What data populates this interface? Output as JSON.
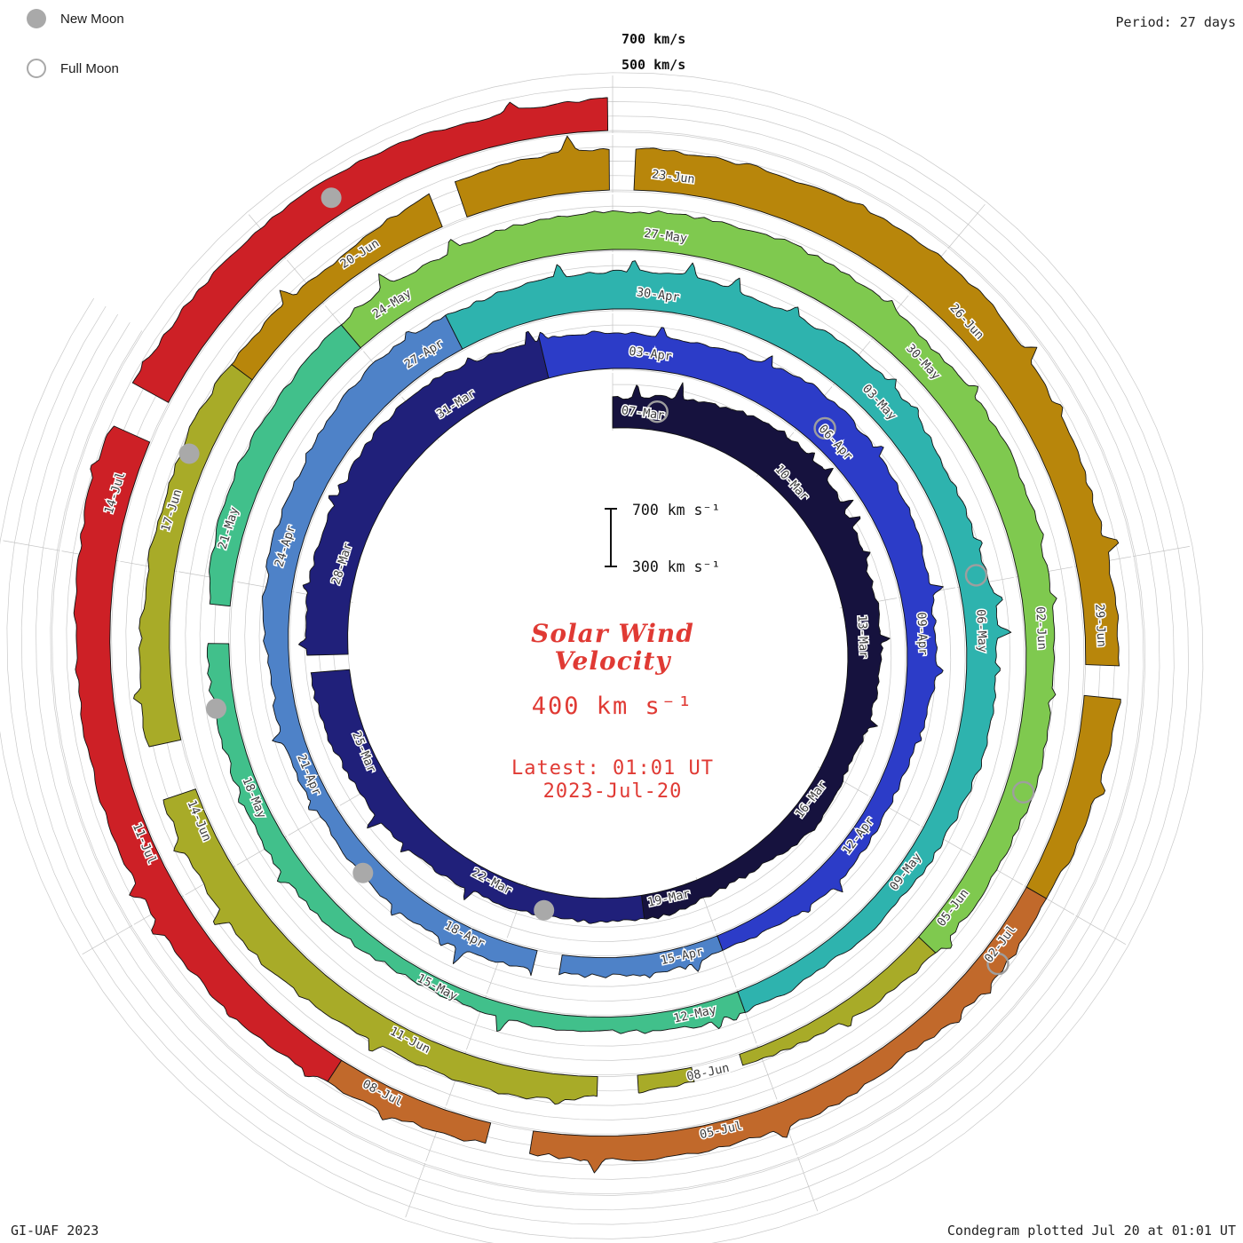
{
  "window": {
    "background": "#ffffff"
  },
  "legend": {
    "items": [
      {
        "label": "New Moon",
        "marker": "filled-circle"
      },
      {
        "label": "Full Moon",
        "marker": "open-circle"
      }
    ]
  },
  "corner_text": {
    "period": "Period: 27 days",
    "credit": "GI-UAF 2023",
    "plotted": "Condegram plotted Jul 20 at 01:01 UT"
  },
  "outer_scale_labels": {
    "l700": "700 km/s",
    "l500": "500 km/s"
  },
  "scale_bar": {
    "top": "700 km s⁻¹",
    "bottom": "300 km s⁻¹"
  },
  "center_text": {
    "title_line1": "Solar Wind",
    "title_line2": "Velocity",
    "baseline": "400 km s⁻¹",
    "latest_line1": "Latest: 01:01 UT",
    "latest_line2": "2023-Jul-20",
    "accent_color": "#e03a34"
  },
  "chart_data": {
    "type": "area",
    "variant": "spiral-condegram",
    "title": "Solar Wind Velocity",
    "units": "km/s",
    "baseline_kms": 400,
    "period_days": 27,
    "start_date": "2023-03-07",
    "latest": "2023-Jul-20 01:01 UT",
    "velocity_scale": {
      "min": 300,
      "max": 700
    },
    "grid_levels": [
      300,
      400,
      500,
      600,
      700
    ],
    "label_step_days": 3,
    "date_labels": [
      "07-Mar",
      "10-Mar",
      "13-Mar",
      "16-Mar",
      "19-Mar",
      "22-Mar",
      "25-Mar",
      "28-Mar",
      "31-Mar",
      "03-Apr",
      "06-Apr",
      "09-Apr",
      "12-Apr",
      "15-Apr",
      "18-Apr",
      "21-Apr",
      "24-Apr",
      "27-Apr",
      "30-Apr",
      "03-May",
      "06-May",
      "09-May",
      "12-May",
      "15-May",
      "18-May",
      "21-May",
      "24-May",
      "27-May",
      "30-May",
      "02-Jun",
      "05-Jun",
      "08-Jun",
      "11-Jun",
      "14-Jun",
      "17-Jun",
      "20-Jun",
      "23-Jun",
      "26-Jun",
      "29-Jun",
      "02-Jul",
      "05-Jul",
      "08-Jul",
      "11-Jul",
      "14-Jul"
    ],
    "control_velocities": [
      500,
      625,
      560,
      480,
      445,
      465,
      520,
      590,
      640,
      545,
      590,
      500,
      440,
      415,
      455,
      430,
      475,
      555,
      575,
      545,
      505,
      470,
      430,
      395,
      425,
      455,
      525,
      570,
      545,
      505,
      465,
      385,
      485,
      530,
      505,
      480,
      570,
      590,
      545,
      485,
      450,
      470,
      525,
      565,
      545,
      510
    ],
    "t_end": 134.96,
    "noise_seed": 20230720,
    "color_segments": [
      {
        "from": 0,
        "to": 13,
        "color": "#16123e"
      },
      {
        "from": 13,
        "to": 26,
        "color": "#20207a"
      },
      {
        "from": 26,
        "to": 39,
        "color": "#2c3cc8"
      },
      {
        "from": 39,
        "to": 52,
        "color": "#4e82c8"
      },
      {
        "from": 52,
        "to": 66,
        "color": "#2eb3ae"
      },
      {
        "from": 66,
        "to": 78,
        "color": "#41c08b"
      },
      {
        "from": 78,
        "to": 91,
        "color": "#7fc94f"
      },
      {
        "from": 91,
        "to": 104,
        "color": "#a8ab28"
      },
      {
        "from": 104,
        "to": 117,
        "color": "#b8860b"
      },
      {
        "from": 117,
        "to": 124,
        "color": "#c1692b"
      },
      {
        "from": 124,
        "to": 134.96,
        "color": "#cd2026"
      }
    ],
    "gaps": [
      [
        19.9,
        20.15
      ],
      [
        41.2,
        41.55
      ],
      [
        74.3,
        74.72
      ],
      [
        93.2,
        93.7
      ],
      [
        94.25,
        94.65
      ],
      [
        99.85,
        100.35
      ],
      [
        106.35,
        106.6
      ],
      [
        107.97,
        108.2
      ],
      [
        114.9,
        115.18
      ],
      [
        122.2,
        122.58
      ],
      [
        130.05,
        130.42
      ]
    ],
    "moons": {
      "new_t": [
        14.6,
        44.1,
        73.6,
        103.1,
        132.6
      ],
      "full_t": [
        0.8,
        30.3,
        59.9,
        89.2,
        117.7
      ]
    }
  }
}
